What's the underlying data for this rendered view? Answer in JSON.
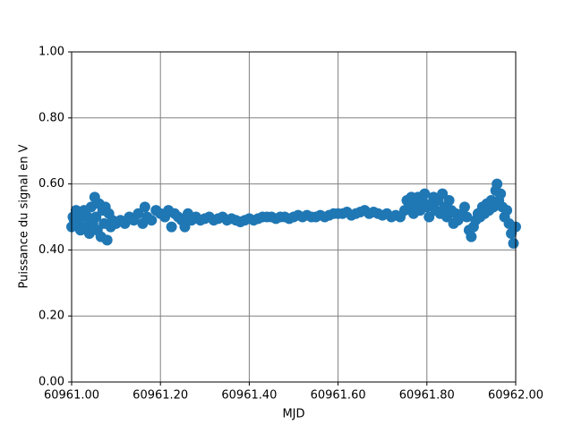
{
  "chart_data": {
    "type": "scatter",
    "xlabel": "MJD",
    "ylabel": "Puissance du signal en V",
    "color": "#1f77b4",
    "grid": true,
    "grid_color": "#808080",
    "xlim": [
      60961.0,
      60962.0
    ],
    "xticks": [
      {
        "value": 60961.0,
        "label": "60961.00"
      },
      {
        "value": 60961.2,
        "label": "60961.20"
      },
      {
        "value": 60961.4,
        "label": "60961.40"
      },
      {
        "value": 60961.6,
        "label": "60961.60"
      },
      {
        "value": 60961.8,
        "label": "60961.80"
      },
      {
        "value": 60962.0,
        "label": "60962.00"
      }
    ],
    "ylim": [
      0,
      1
    ],
    "yticks": [
      {
        "value": 0,
        "label": "0.00"
      },
      {
        "value": 0.2,
        "label": "0.20"
      },
      {
        "value": 0.4,
        "label": "0.40"
      },
      {
        "value": 0.6,
        "label": "0.60"
      },
      {
        "value": 0.8,
        "label": "0.80"
      },
      {
        "value": 1,
        "label": "1.00"
      }
    ],
    "x": [
      60961.0,
      60961.003,
      60961.006,
      60961.01,
      60961.013,
      60961.017,
      60961.02,
      60961.024,
      60961.028,
      60961.032,
      60961.036,
      60961.04,
      60961.044,
      60961.048,
      60961.052,
      60961.055,
      60961.058,
      60961.062,
      60961.066,
      60961.07,
      60961.073,
      60961.076,
      60961.08,
      60961.084,
      60961.088,
      60961.092,
      60961.1,
      60961.11,
      60961.12,
      60961.13,
      60961.14,
      60961.15,
      60961.16,
      60961.165,
      60961.17,
      60961.18,
      60961.19,
      60961.2,
      60961.21,
      60961.218,
      60961.225,
      60961.232,
      60961.24,
      60961.248,
      60961.255,
      60961.262,
      60961.27,
      60961.28,
      60961.29,
      60961.3,
      60961.31,
      60961.32,
      60961.33,
      60961.34,
      60961.35,
      60961.36,
      60961.37,
      60961.38,
      60961.39,
      60961.4,
      60961.41,
      60961.42,
      60961.43,
      60961.44,
      60961.45,
      60961.46,
      60961.47,
      60961.48,
      60961.49,
      60961.5,
      60961.51,
      60961.52,
      60961.53,
      60961.54,
      60961.55,
      60961.56,
      60961.57,
      60961.58,
      60961.59,
      60961.6,
      60961.61,
      60961.62,
      60961.63,
      60961.64,
      60961.65,
      60961.66,
      60961.67,
      60961.68,
      60961.69,
      60961.7,
      60961.71,
      60961.72,
      60961.73,
      60961.74,
      60961.75,
      60961.755,
      60961.76,
      60961.765,
      60961.77,
      60961.775,
      60961.78,
      60961.785,
      60961.79,
      60961.795,
      60961.8,
      60961.805,
      60961.81,
      60961.815,
      60961.82,
      60961.825,
      60961.83,
      60961.835,
      60961.84,
      60961.845,
      60961.85,
      60961.855,
      60961.86,
      60961.865,
      60961.87,
      60961.875,
      60961.88,
      60961.885,
      60961.89,
      60961.895,
      60961.9,
      60961.905,
      60961.91,
      60961.915,
      60961.92,
      60961.925,
      60961.93,
      60961.935,
      60961.94,
      60961.945,
      60961.95,
      60961.955,
      60961.958,
      60961.962,
      60961.966,
      60961.97,
      60961.975,
      60961.98,
      60961.985,
      60961.99,
      60961.995,
      60962.0
    ],
    "values": [
      0.47,
      0.5,
      0.49,
      0.52,
      0.48,
      0.51,
      0.46,
      0.5,
      0.52,
      0.47,
      0.5,
      0.45,
      0.53,
      0.48,
      0.56,
      0.5,
      0.46,
      0.54,
      0.44,
      0.52,
      0.48,
      0.53,
      0.43,
      0.51,
      0.47,
      0.49,
      0.48,
      0.49,
      0.48,
      0.5,
      0.49,
      0.51,
      0.48,
      0.53,
      0.5,
      0.49,
      0.52,
      0.51,
      0.5,
      0.52,
      0.47,
      0.51,
      0.5,
      0.49,
      0.47,
      0.51,
      0.49,
      0.5,
      0.49,
      0.495,
      0.5,
      0.49,
      0.495,
      0.5,
      0.49,
      0.495,
      0.49,
      0.485,
      0.49,
      0.495,
      0.49,
      0.495,
      0.5,
      0.5,
      0.5,
      0.495,
      0.5,
      0.5,
      0.495,
      0.5,
      0.505,
      0.5,
      0.505,
      0.5,
      0.5,
      0.505,
      0.5,
      0.505,
      0.51,
      0.51,
      0.51,
      0.515,
      0.505,
      0.51,
      0.515,
      0.52,
      0.51,
      0.515,
      0.51,
      0.505,
      0.51,
      0.5,
      0.505,
      0.5,
      0.52,
      0.55,
      0.53,
      0.56,
      0.51,
      0.54,
      0.56,
      0.52,
      0.55,
      0.57,
      0.53,
      0.5,
      0.54,
      0.56,
      0.52,
      0.55,
      0.51,
      0.57,
      0.53,
      0.5,
      0.55,
      0.52,
      0.48,
      0.51,
      0.49,
      0.5,
      0.51,
      0.53,
      0.5,
      0.46,
      0.44,
      0.47,
      0.49,
      0.51,
      0.5,
      0.53,
      0.51,
      0.54,
      0.52,
      0.55,
      0.53,
      0.58,
      0.6,
      0.55,
      0.57,
      0.53,
      0.5,
      0.52,
      0.48,
      0.45,
      0.42,
      0.47
    ]
  }
}
